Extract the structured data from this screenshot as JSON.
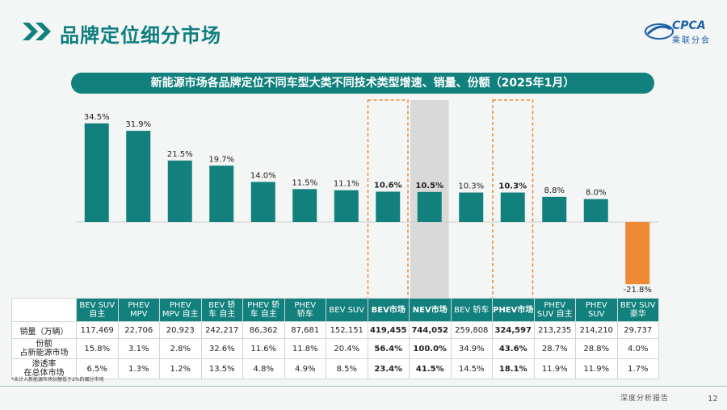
{
  "page": {
    "title": "品牌定位细分市场",
    "logo_text": "CPCA",
    "logo_sub": "乘联分会",
    "banner": "新能源市场各品牌定位不同车型大类不同技术类型增速、销量、份额（2025年1月）",
    "footnote": "*未计入新能源市场份额低于2%的细分市场",
    "report_label": "深度分析报告",
    "page_number": "12"
  },
  "colors": {
    "teal": "#12807d",
    "orange": "#ef8a34",
    "highlight_bg": "#d9d9d9",
    "dash": "#ef8a34"
  },
  "chart_data": {
    "type": "bar",
    "title": "新能源市场各品牌定位不同车型大类不同技术类型增速、销量、份额（2025年1月）",
    "categories": [
      "BEV SUV 自主",
      "PHEV MPV",
      "PHEV MPV 自主",
      "BEV 轿车 自主",
      "PHEV 轿车 自主",
      "PHEV 轿车",
      "BEV SUV",
      "BEV市场",
      "NEV市场",
      "BEV 轿车",
      "PHEV市场",
      "PHEV SUV 自主",
      "PHEV SUV",
      "BEV SUV 豪华"
    ],
    "values": [
      34.5,
      31.9,
      21.5,
      19.7,
      14.0,
      11.5,
      11.1,
      10.6,
      10.5,
      10.3,
      10.3,
      8.8,
      8.0,
      -21.8
    ],
    "value_labels": [
      "34.5%",
      "31.9%",
      "21.5%",
      "19.7%",
      "14.0%",
      "11.5%",
      "11.1%",
      "10.6%",
      "10.5%",
      "10.3%",
      "10.3%",
      "8.8%",
      "8.0%",
      "-21.8%"
    ],
    "bold_indices": [
      7,
      8,
      10
    ],
    "dashed_box_indices": [
      7,
      10
    ],
    "shaded_index": 8,
    "negative_color": "#ef8a34",
    "bar_color": "#12807d",
    "ylim": [
      -25,
      40
    ]
  },
  "table": {
    "headers": [
      [
        "BEV SUV",
        "自主"
      ],
      [
        "PHEV",
        "MPV"
      ],
      [
        "PHEV",
        "MPV 自主"
      ],
      [
        "BEV 轿",
        "车 自主"
      ],
      [
        "PHEV 轿",
        "车 自主"
      ],
      [
        "PHEV",
        "轿车"
      ],
      [
        "BEV SUV"
      ],
      [
        "BEV市场"
      ],
      [
        "NEV市场"
      ],
      [
        "BEV 轿车"
      ],
      [
        "PHEV市场"
      ],
      [
        "PHEV",
        "SUV 自主"
      ],
      [
        "PHEV",
        "SUV"
      ],
      [
        "BEV SUV",
        "豪华"
      ]
    ],
    "rows": [
      {
        "label": [
          "销量（万辆）"
        ],
        "values": [
          "117,469",
          "22,706",
          "20,923",
          "242,217",
          "86,362",
          "87,681",
          "152,151",
          "419,455",
          "744,052",
          "259,808",
          "324,597",
          "213,235",
          "214,210",
          "29,737"
        ]
      },
      {
        "label": [
          "份额",
          "占新能源市场"
        ],
        "values": [
          "15.8%",
          "3.1%",
          "2.8%",
          "32.6%",
          "11.6%",
          "11.8%",
          "20.4%",
          "56.4%",
          "100.0%",
          "34.9%",
          "43.6%",
          "28.7%",
          "28.8%",
          "4.0%"
        ]
      },
      {
        "label": [
          "渗透率",
          "在总体市场"
        ],
        "values": [
          "6.5%",
          "1.3%",
          "1.2%",
          "13.5%",
          "4.8%",
          "4.9%",
          "8.5%",
          "23.4%",
          "41.5%",
          "14.5%",
          "18.1%",
          "11.9%",
          "11.9%",
          "1.7%"
        ]
      }
    ]
  }
}
